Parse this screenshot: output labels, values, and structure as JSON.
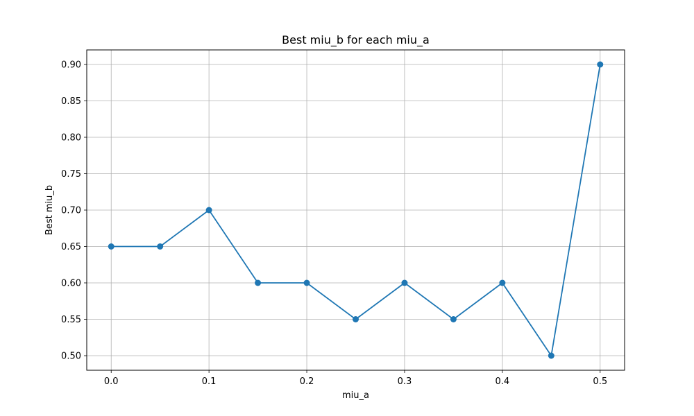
{
  "chart_data": {
    "type": "line",
    "title": "Best miu_b for each miu_a",
    "xlabel": "miu_a",
    "ylabel": "Best miu_b",
    "xlim": [
      -0.025,
      0.525
    ],
    "ylim": [
      0.48,
      0.92
    ],
    "xticks": [
      0.0,
      0.1,
      0.2,
      0.3,
      0.4,
      0.5
    ],
    "xtick_labels": [
      "0.0",
      "0.1",
      "0.2",
      "0.3",
      "0.4",
      "0.5"
    ],
    "yticks": [
      0.5,
      0.55,
      0.6,
      0.65,
      0.7,
      0.75,
      0.8,
      0.85,
      0.9
    ],
    "ytick_labels": [
      "0.50",
      "0.55",
      "0.60",
      "0.65",
      "0.70",
      "0.75",
      "0.80",
      "0.85",
      "0.90"
    ],
    "grid": true,
    "markers": "circle",
    "series": [
      {
        "x": [
          0.0,
          0.05,
          0.1,
          0.15,
          0.2,
          0.25,
          0.3,
          0.35,
          0.4,
          0.45,
          0.5
        ],
        "y": [
          0.65,
          0.65,
          0.7,
          0.6,
          0.6,
          0.55,
          0.6,
          0.55,
          0.6,
          0.5,
          0.9
        ],
        "color": "#1f77b4"
      }
    ]
  }
}
